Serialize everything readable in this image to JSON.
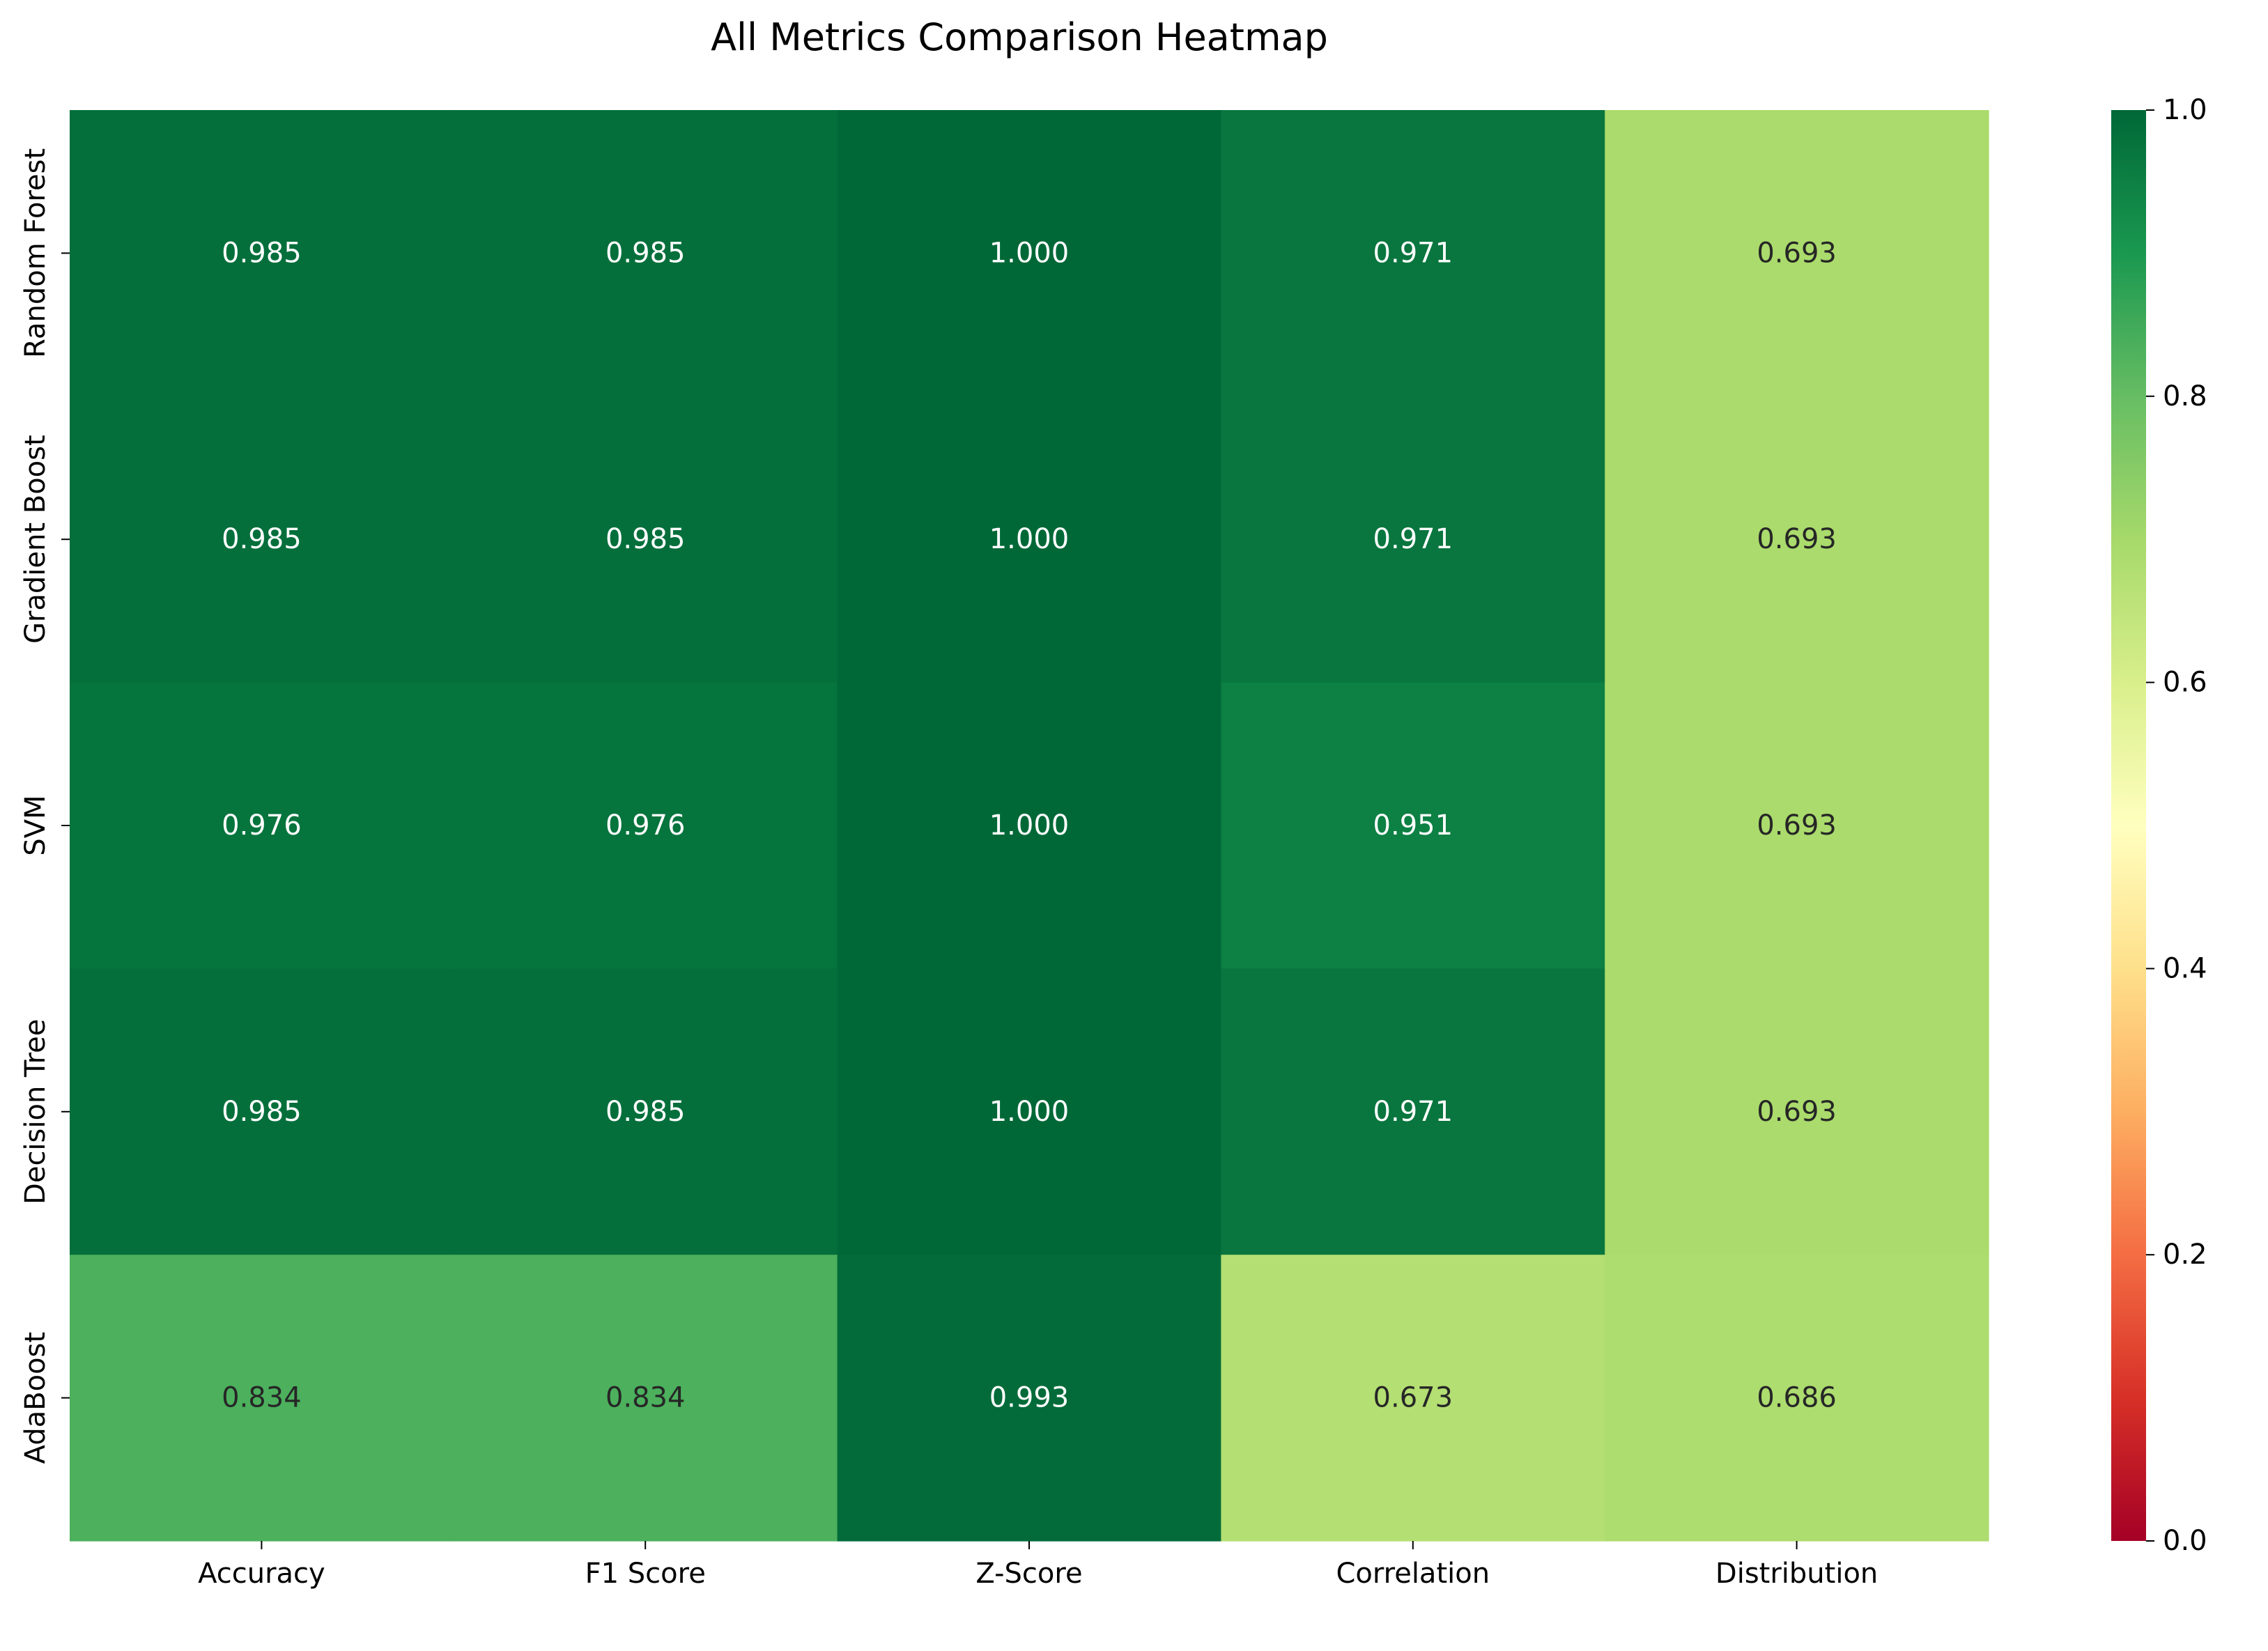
{
  "chart_data": {
    "type": "heatmap",
    "title": "All Metrics Comparison Heatmap",
    "xlabel": "",
    "ylabel": "",
    "columns": [
      "Accuracy",
      "F1 Score",
      "Z-Score",
      "Correlation",
      "Distribution"
    ],
    "rows": [
      "Random Forest",
      "Gradient Boost",
      "SVM",
      "Decision Tree",
      "AdaBoost"
    ],
    "values": [
      [
        0.985,
        0.985,
        1.0,
        0.971,
        0.693
      ],
      [
        0.985,
        0.985,
        1.0,
        0.971,
        0.693
      ],
      [
        0.976,
        0.976,
        1.0,
        0.951,
        0.693
      ],
      [
        0.985,
        0.985,
        1.0,
        0.971,
        0.693
      ],
      [
        0.834,
        0.834,
        0.993,
        0.673,
        0.686
      ]
    ],
    "value_labels": [
      [
        "0.985",
        "0.985",
        "1.000",
        "0.971",
        "0.693"
      ],
      [
        "0.985",
        "0.985",
        "1.000",
        "0.971",
        "0.693"
      ],
      [
        "0.976",
        "0.976",
        "1.000",
        "0.951",
        "0.693"
      ],
      [
        "0.985",
        "0.985",
        "1.000",
        "0.971",
        "0.693"
      ],
      [
        "0.834",
        "0.834",
        "0.993",
        "0.673",
        "0.686"
      ]
    ],
    "colormap": "RdYlGn",
    "vmin": 0.0,
    "vmax": 1.0,
    "colorbar": {
      "ticks": [
        0.0,
        0.2,
        0.4,
        0.6,
        0.8,
        1.0
      ],
      "tick_labels": [
        "0.0",
        "0.2",
        "0.4",
        "0.6",
        "0.8",
        "1.0"
      ]
    },
    "legend": "right",
    "grid": false
  }
}
